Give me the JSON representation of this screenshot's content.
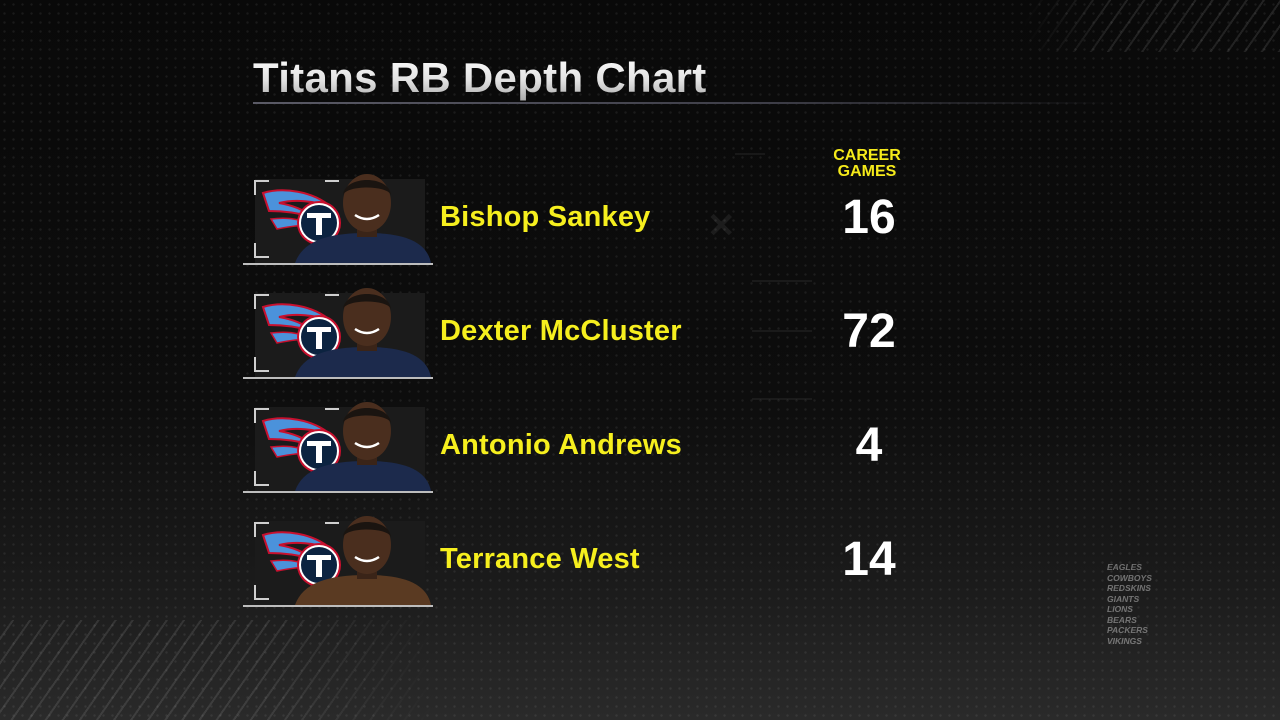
{
  "title": "Titans RB Depth Chart",
  "column_header": {
    "line1": "CAREER",
    "line2": "GAMES"
  },
  "players": [
    {
      "name": "Bishop Sankey",
      "career_games": "16",
      "team_logo": "titans-logo-icon",
      "jersey_color": "#1c2a4c"
    },
    {
      "name": "Dexter McCluster",
      "career_games": "72",
      "team_logo": "titans-logo-icon",
      "jersey_color": "#1c2a4c"
    },
    {
      "name": "Antonio Andrews",
      "career_games": "4",
      "team_logo": "titans-logo-icon",
      "jersey_color": "#1c2a4c"
    },
    {
      "name": "Terrance West",
      "career_games": "14",
      "team_logo": "titans-logo-icon",
      "jersey_color": "#5a3a22"
    }
  ],
  "team_list": [
    "EAGLES",
    "COWBOYS",
    "REDSKINS",
    "GIANTS",
    "LIONS",
    "BEARS",
    "PACKERS",
    "VIKINGS"
  ],
  "colors": {
    "name_yellow": "#f6ef1e",
    "header_yellow": "#f5ea1a",
    "number_white": "#ffffff",
    "titans_navy": "#0c2340",
    "titans_light_blue": "#4b92db",
    "titans_red": "#c8102e"
  }
}
